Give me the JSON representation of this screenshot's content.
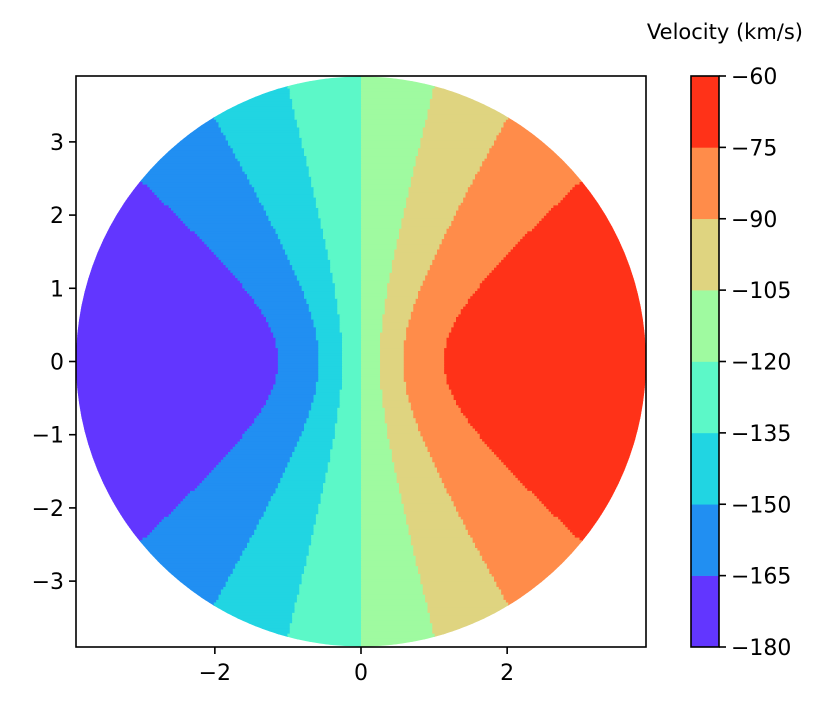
{
  "chart_data": {
    "type": "heatmap",
    "title": "",
    "xlabel": "",
    "ylabel": "",
    "xlim": [
      -3.9,
      3.9
    ],
    "ylim": [
      -3.9,
      3.9
    ],
    "x_ticks": [
      -2,
      0,
      2
    ],
    "y_ticks": [
      -3,
      -2,
      -1,
      0,
      1,
      2,
      3
    ],
    "x_tick_labels": [
      "−2",
      "0",
      "2"
    ],
    "y_tick_labels": [
      "−3",
      "−2",
      "−1",
      "0",
      "1",
      "2",
      "3"
    ],
    "disk_radius": 3.9,
    "grid": false,
    "colorbar": {
      "label": "Velocity (km/s)",
      "levels": [
        -180,
        -165,
        -150,
        -135,
        -120,
        -105,
        -90,
        -75,
        -60
      ],
      "tick_labels": [
        "−180",
        "−165",
        "−150",
        "−135",
        "−120",
        "−105",
        "−90",
        "−75",
        "−60"
      ],
      "colors": [
        "#6236ff",
        "#218ff2",
        "#21d5e2",
        "#5cf8c8",
        "#9ffaa0",
        "#dfd480",
        "#ff8c4a",
        "#ff3218"
      ]
    },
    "velocity_field": {
      "systemic_velocity": -120,
      "velocity_amplitude": 60
    }
  }
}
